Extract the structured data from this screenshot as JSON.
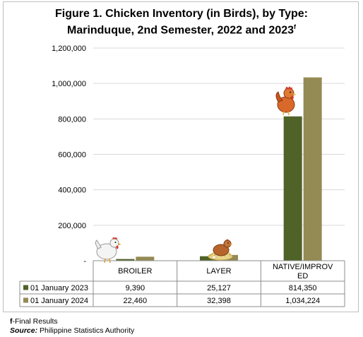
{
  "chart_data": {
    "type": "bar",
    "title_line1": "Figure 1. Chicken Inventory (in Birds), by Type:",
    "title_line2": "Marinduque, 2nd Semester, 2022 and 2023",
    "title_superscript": "f",
    "categories": [
      "BROILER",
      "LAYER",
      "NATIVE/IMPROVED"
    ],
    "category_label_lines": [
      [
        "BROILER"
      ],
      [
        "LAYER"
      ],
      [
        "NATIVE/IMPROV",
        "ED"
      ]
    ],
    "series": [
      {
        "name": "01 January 2023",
        "values": [
          9390,
          25127,
          814350
        ],
        "labels": [
          "9,390",
          "25,127",
          "814,350"
        ],
        "color": "#4f6228"
      },
      {
        "name": "01 January 2024",
        "values": [
          22460,
          32398,
          1034224
        ],
        "labels": [
          "22,460",
          "32,398",
          "1,034,224"
        ],
        "color": "#948a54"
      }
    ],
    "ylim": [
      0,
      1200000
    ],
    "yticks": [
      0,
      200000,
      400000,
      600000,
      800000,
      1000000,
      1200000
    ],
    "ytick_labels": [
      "-",
      "200,000",
      "400,000",
      "600,000",
      "800,000",
      "1,000,000",
      "1,200,000"
    ],
    "grid": true,
    "legend": "data-table-below",
    "icons": [
      "white-chicken-icon",
      "nesting-hen-icon",
      "brown-chicken-icon"
    ]
  },
  "footnotes": {
    "final_marker": "f",
    "final_text": "-Final Results",
    "source_label": "Source:",
    "source_text": " Philippine Statistics Authority"
  }
}
